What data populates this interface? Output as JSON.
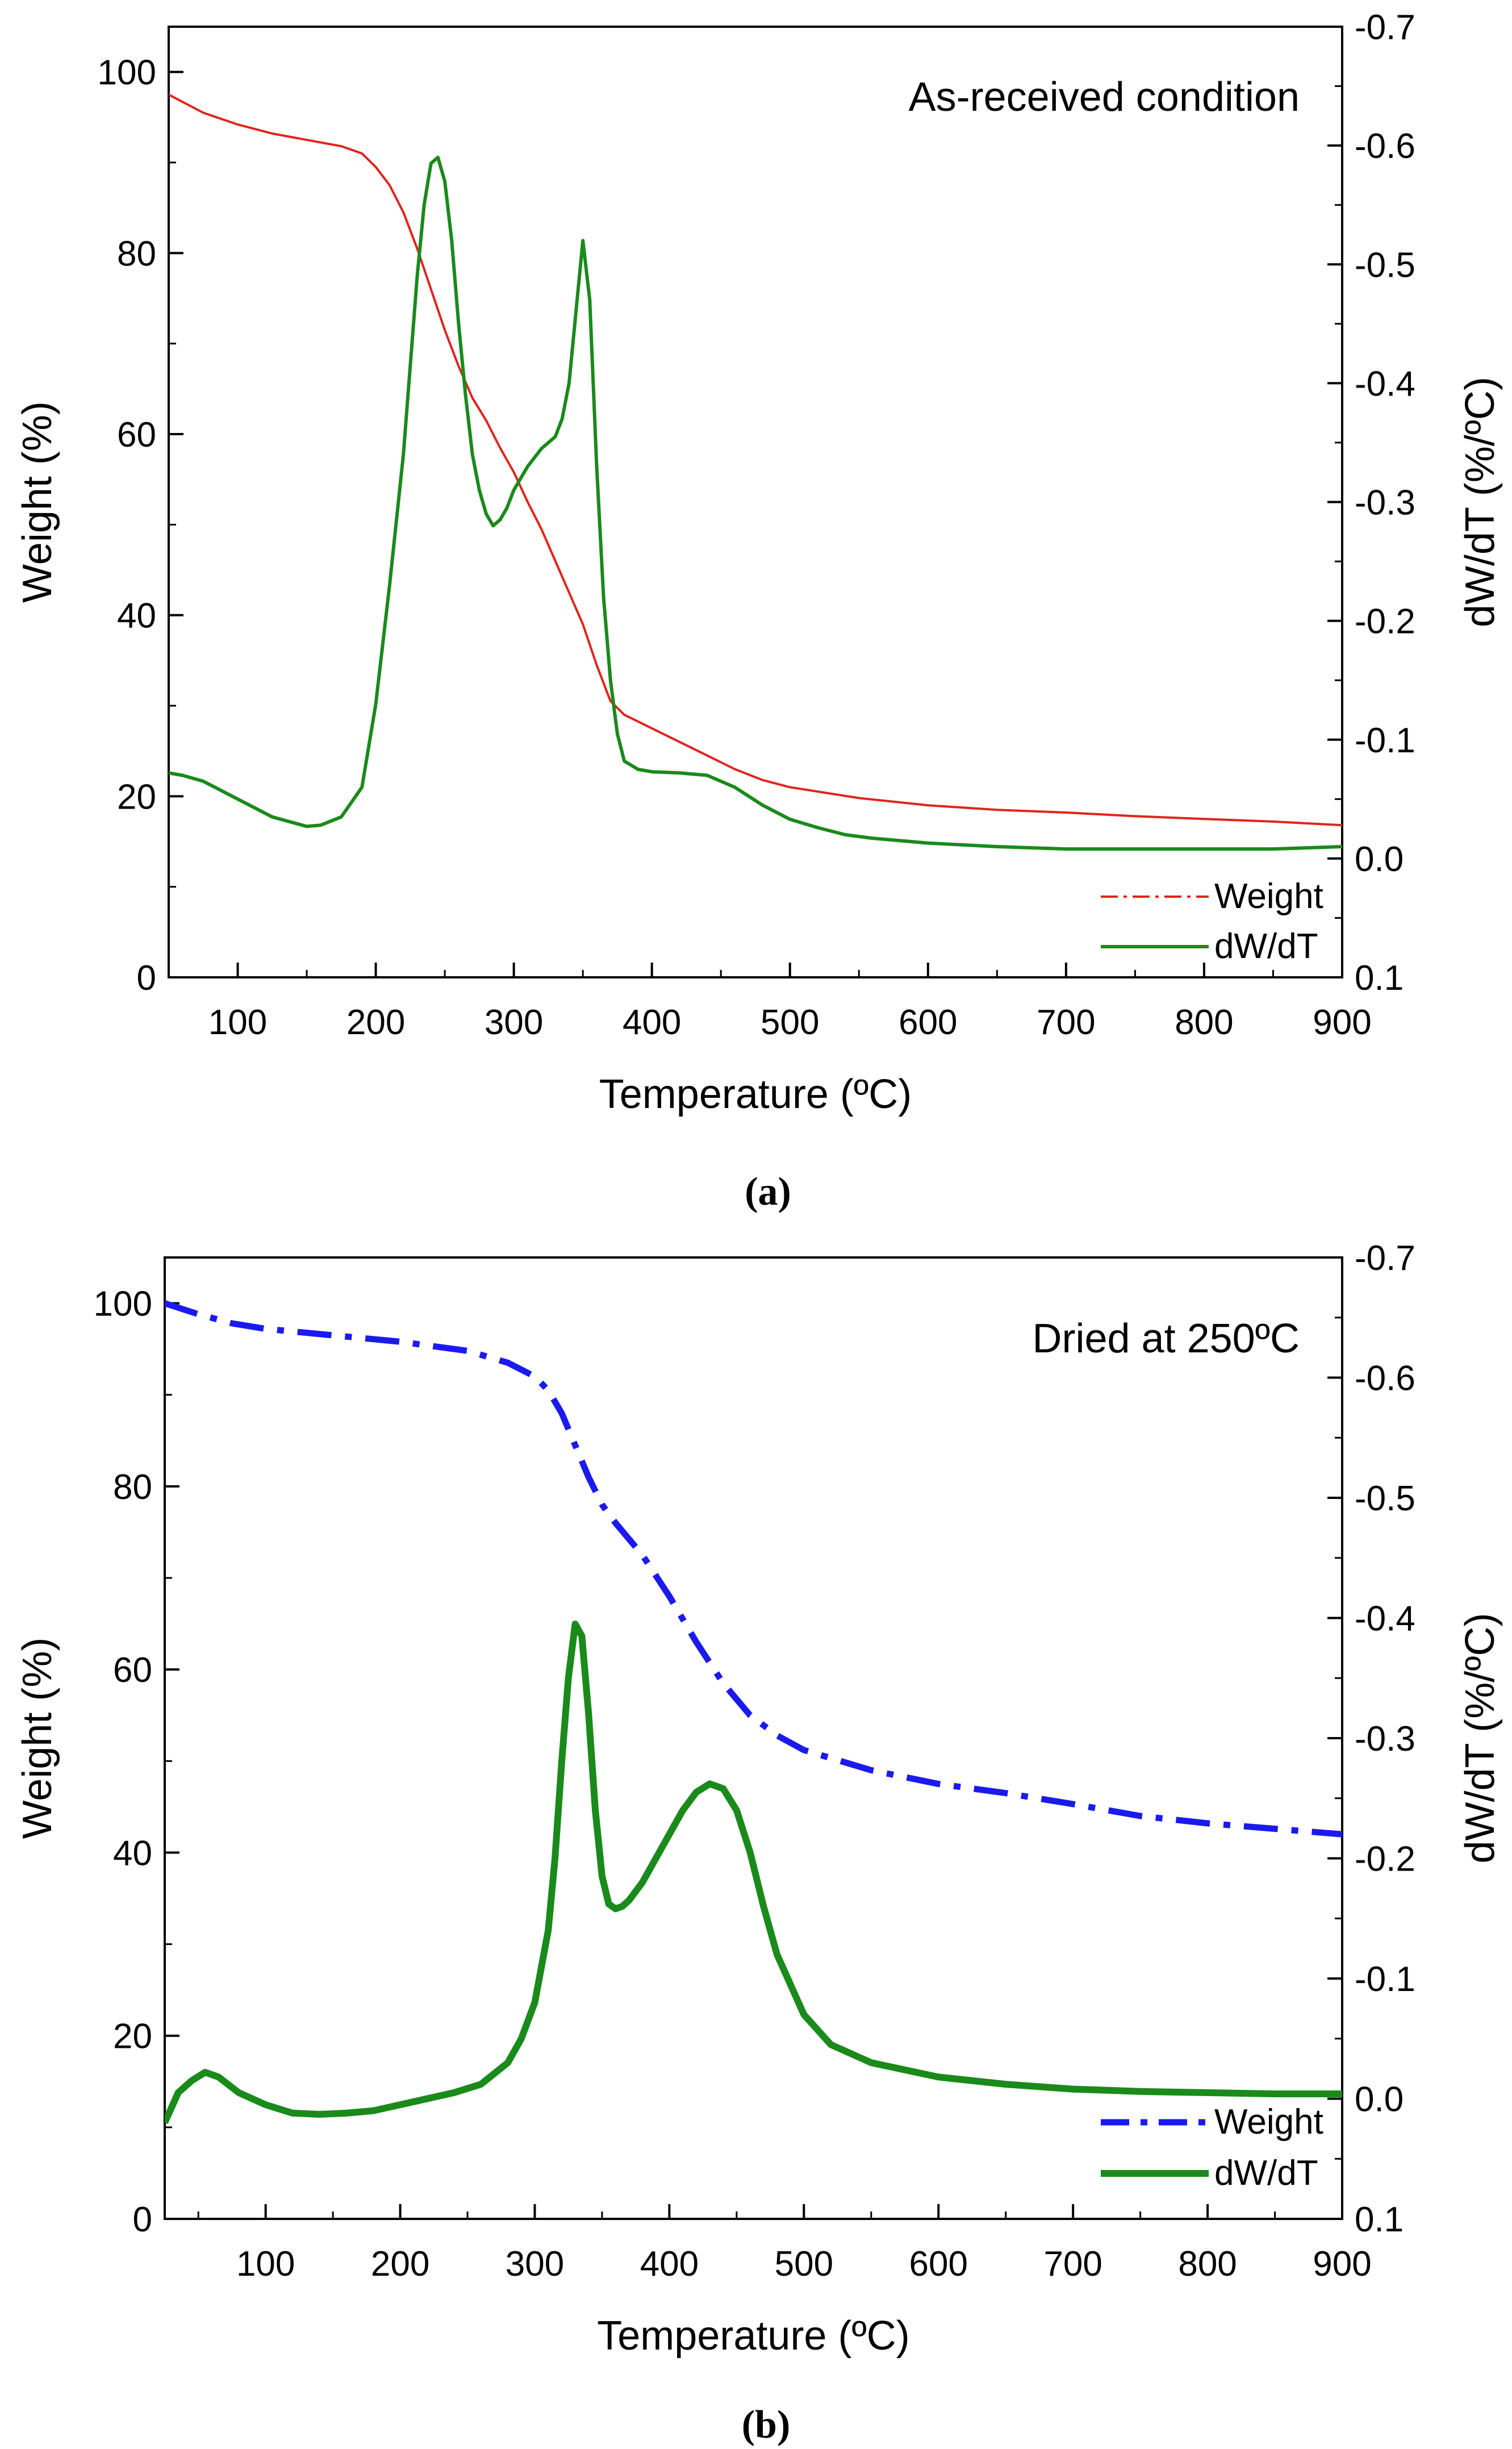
{
  "chart_data": [
    {
      "type": "line",
      "panel_label": "(a)",
      "annotation": "As-received condition",
      "xlabel": "Temperature (ºC)",
      "ylabel_left": "Weight (%)",
      "ylabel_right": "dW/dT (%/ºC)",
      "xlim": [
        50,
        900
      ],
      "xticks": [
        100,
        200,
        300,
        400,
        500,
        600,
        700,
        800,
        900
      ],
      "ylim_left": [
        0,
        105
      ],
      "yticks_left": [
        0,
        20,
        40,
        60,
        80,
        100
      ],
      "ylim_right": [
        0.1,
        -0.7
      ],
      "yticks_right": [
        0.1,
        0.0,
        -0.1,
        -0.2,
        -0.3,
        -0.4,
        -0.5,
        -0.6,
        -0.7
      ],
      "right_tick_labels": [
        "0.1",
        "0.0",
        "-0.1",
        "-0.2",
        "-0.3",
        "-0.4",
        "-0.5",
        "-0.6",
        "-0.7"
      ],
      "grid": false,
      "legend_position": "bottom-right",
      "series": [
        {
          "name": "Weight",
          "axis": "left",
          "color": "#e0241b",
          "style": "thin-dashdot",
          "x": [
            50,
            75,
            100,
            125,
            150,
            175,
            190,
            200,
            210,
            220,
            230,
            240,
            250,
            260,
            270,
            280,
            290,
            300,
            310,
            320,
            330,
            340,
            350,
            360,
            370,
            380,
            400,
            420,
            440,
            460,
            480,
            500,
            550,
            600,
            650,
            700,
            750,
            800,
            850,
            900
          ],
          "y": [
            97.5,
            95.5,
            94.2,
            93.2,
            92.5,
            91.8,
            91.0,
            89.5,
            87.5,
            84.5,
            80.5,
            76.0,
            71.5,
            67.5,
            64.0,
            61.5,
            58.5,
            55.8,
            52.5,
            49.5,
            46.0,
            42.5,
            39.0,
            34.5,
            30.5,
            29.0,
            27.5,
            26.0,
            24.5,
            23.0,
            21.8,
            21.0,
            19.8,
            19.0,
            18.5,
            18.2,
            17.8,
            17.5,
            17.2,
            16.8
          ]
        },
        {
          "name": "dW/dT",
          "axis": "right",
          "color": "#1a8a1a",
          "style": "solid",
          "x": [
            50,
            60,
            75,
            100,
            125,
            150,
            160,
            175,
            190,
            200,
            210,
            220,
            230,
            235,
            240,
            245,
            250,
            255,
            260,
            265,
            270,
            275,
            280,
            285,
            290,
            295,
            300,
            310,
            320,
            330,
            335,
            340,
            345,
            350,
            355,
            360,
            365,
            370,
            375,
            380,
            390,
            400,
            420,
            440,
            460,
            480,
            500,
            520,
            540,
            560,
            600,
            650,
            700,
            750,
            800,
            850,
            900
          ],
          "y": [
            -0.072,
            -0.07,
            -0.065,
            -0.05,
            -0.035,
            -0.027,
            -0.028,
            -0.035,
            -0.06,
            -0.13,
            -0.23,
            -0.34,
            -0.49,
            -0.55,
            -0.585,
            -0.59,
            -0.57,
            -0.52,
            -0.45,
            -0.39,
            -0.34,
            -0.31,
            -0.29,
            -0.28,
            -0.285,
            -0.295,
            -0.31,
            -0.33,
            -0.345,
            -0.355,
            -0.37,
            -0.4,
            -0.46,
            -0.52,
            -0.47,
            -0.33,
            -0.22,
            -0.15,
            -0.105,
            -0.082,
            -0.075,
            -0.073,
            -0.072,
            -0.07,
            -0.06,
            -0.045,
            -0.033,
            -0.026,
            -0.02,
            -0.017,
            -0.013,
            -0.01,
            -0.008,
            -0.008,
            -0.008,
            -0.008,
            -0.01
          ]
        }
      ]
    },
    {
      "type": "line",
      "panel_label": "(b)",
      "annotation": "Dried at 250ºC",
      "xlabel": "Temperature (ºC)",
      "ylabel_left": "Weight (%)",
      "ylabel_right": "dW/dT (%/ºC)",
      "xlim": [
        25,
        900
      ],
      "xticks": [
        100,
        200,
        300,
        400,
        500,
        600,
        700,
        800,
        900
      ],
      "ylim_left": [
        0,
        105
      ],
      "yticks_left": [
        0,
        20,
        40,
        60,
        80,
        100
      ],
      "ylim_right": [
        0.1,
        -0.7
      ],
      "yticks_right": [
        0.1,
        0.0,
        -0.1,
        -0.2,
        -0.3,
        -0.4,
        -0.5,
        -0.6,
        -0.7
      ],
      "right_tick_labels": [
        "0.1",
        "0.0",
        "-0.1",
        "-0.2",
        "-0.3",
        "-0.4",
        "-0.5",
        "-0.6",
        "-0.7"
      ],
      "grid": false,
      "legend_position": "bottom-right",
      "series": [
        {
          "name": "Weight",
          "axis": "left",
          "color": "#1a1aee",
          "style": "thick-dashdot",
          "x": [
            25,
            50,
            75,
            100,
            150,
            200,
            250,
            280,
            300,
            310,
            320,
            330,
            340,
            350,
            360,
            380,
            400,
            420,
            440,
            460,
            480,
            500,
            550,
            600,
            650,
            700,
            750,
            800,
            850,
            900
          ],
          "y": [
            100,
            98.8,
            97.8,
            97.2,
            96.5,
            95.8,
            94.8,
            93.5,
            92.0,
            90.5,
            88.0,
            84.5,
            81.0,
            78.0,
            76.0,
            72.5,
            68.0,
            63.0,
            58.5,
            55.0,
            52.8,
            51.2,
            49.0,
            47.5,
            46.5,
            45.3,
            44.0,
            43.2,
            42.6,
            42.0
          ]
        },
        {
          "name": "dW/dT",
          "axis": "right",
          "color": "#1a8a1a",
          "style": "thick-solid",
          "x": [
            25,
            35,
            45,
            55,
            65,
            80,
            100,
            120,
            140,
            160,
            180,
            200,
            220,
            240,
            260,
            280,
            290,
            300,
            310,
            315,
            320,
            325,
            330,
            335,
            340,
            345,
            350,
            355,
            360,
            365,
            370,
            380,
            390,
            400,
            410,
            420,
            430,
            440,
            450,
            460,
            470,
            480,
            500,
            520,
            550,
            600,
            650,
            700,
            750,
            800,
            850,
            900
          ],
          "y": [
            0.02,
            -0.005,
            -0.015,
            -0.022,
            -0.018,
            -0.005,
            0.005,
            0.012,
            0.013,
            0.012,
            0.01,
            0.005,
            0.0,
            -0.005,
            -0.012,
            -0.03,
            -0.05,
            -0.08,
            -0.14,
            -0.2,
            -0.28,
            -0.35,
            -0.395,
            -0.385,
            -0.32,
            -0.24,
            -0.185,
            -0.162,
            -0.158,
            -0.16,
            -0.165,
            -0.18,
            -0.2,
            -0.22,
            -0.24,
            -0.255,
            -0.262,
            -0.258,
            -0.24,
            -0.205,
            -0.16,
            -0.12,
            -0.07,
            -0.045,
            -0.03,
            -0.018,
            -0.012,
            -0.008,
            -0.006,
            -0.005,
            -0.004,
            -0.004
          ]
        }
      ]
    }
  ]
}
